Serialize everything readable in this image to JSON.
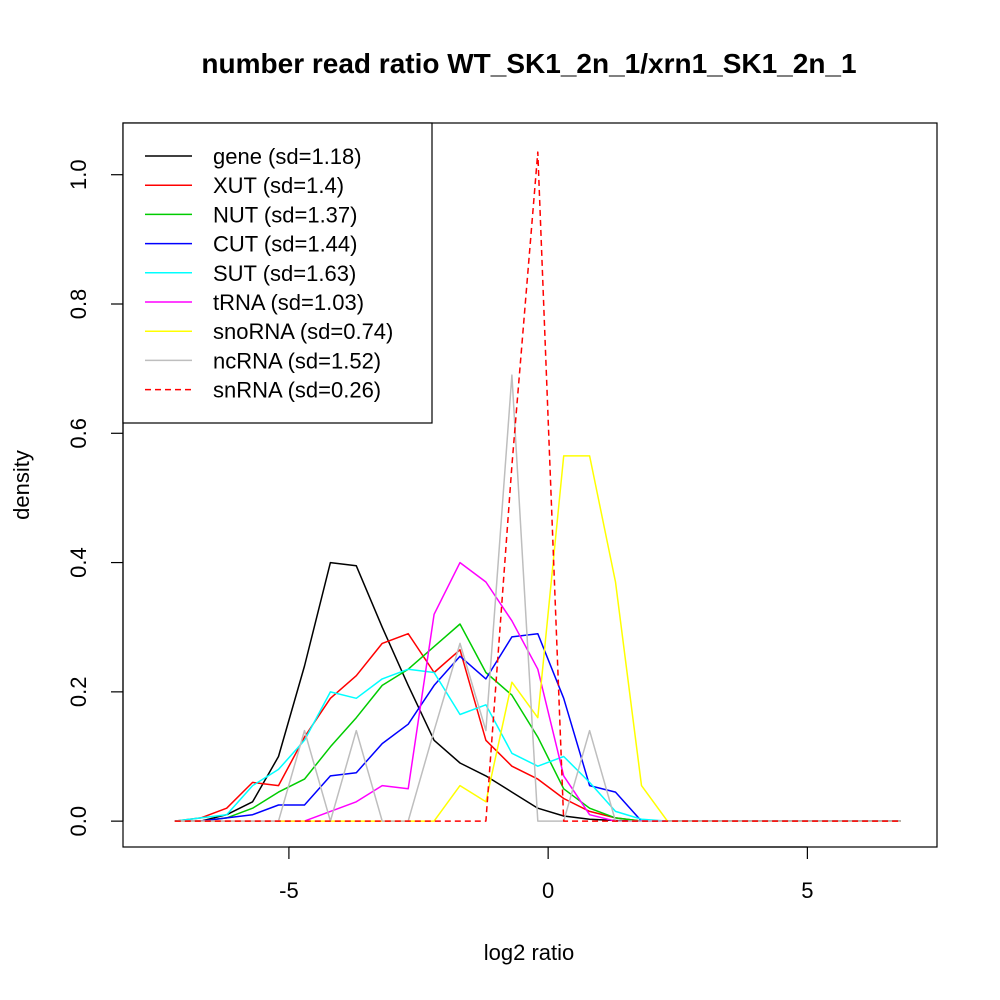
{
  "chart_data": {
    "type": "line",
    "title": "number read ratio WT_SK1_2n_1/xrn1_SK1_2n_1",
    "xlabel": "log2 ratio",
    "ylabel": "density",
    "xlim": [
      -8.2,
      7.5
    ],
    "ylim": [
      -0.04,
      1.08
    ],
    "x_ticks": [
      -5,
      0,
      5
    ],
    "x_tick_labels": [
      "-5",
      "0",
      "5"
    ],
    "y_ticks": [
      0.0,
      0.2,
      0.4,
      0.6,
      0.8,
      1.0
    ],
    "y_tick_labels": [
      "0.0",
      "0.2",
      "0.4",
      "0.6",
      "0.8",
      "1.0"
    ],
    "grid": false,
    "legend_position": "top-left",
    "x": [
      -7.2,
      -6.7,
      -6.2,
      -5.7,
      -5.2,
      -4.7,
      -4.2,
      -3.7,
      -3.2,
      -2.7,
      -2.2,
      -1.7,
      -1.2,
      -0.7,
      -0.2,
      0.3,
      0.8,
      1.3,
      1.8,
      2.3,
      2.8,
      3.3,
      3.8,
      4.3,
      4.8,
      5.3,
      5.8,
      6.3,
      6.8
    ],
    "series": [
      {
        "name": "gene (sd=1.18)",
        "color": "#000000",
        "dash": false,
        "values": [
          0,
          0,
          0.01,
          0.03,
          0.1,
          0.24,
          0.4,
          0.395,
          0.3,
          0.21,
          0.125,
          0.09,
          0.07,
          0.045,
          0.02,
          0.008,
          0.003,
          0.001,
          0,
          0,
          0,
          0,
          0,
          0,
          0,
          0,
          0,
          0,
          0
        ]
      },
      {
        "name": "XUT (sd=1.4)",
        "color": "#ff0000",
        "dash": false,
        "values": [
          0,
          0.005,
          0.02,
          0.06,
          0.055,
          0.13,
          0.19,
          0.225,
          0.275,
          0.29,
          0.23,
          0.265,
          0.125,
          0.085,
          0.065,
          0.035,
          0.015,
          0.005,
          0,
          0,
          0,
          0,
          0,
          0,
          0,
          0,
          0,
          0,
          0
        ]
      },
      {
        "name": "NUT (sd=1.37)",
        "color": "#00cc00",
        "dash": false,
        "values": [
          0,
          0,
          0.005,
          0.02,
          0.045,
          0.065,
          0.115,
          0.16,
          0.21,
          0.235,
          0.27,
          0.305,
          0.23,
          0.195,
          0.13,
          0.05,
          0.02,
          0.005,
          0,
          0,
          0,
          0,
          0,
          0,
          0,
          0,
          0,
          0,
          0
        ]
      },
      {
        "name": "CUT (sd=1.44)",
        "color": "#0000ff",
        "dash": false,
        "values": [
          0,
          0,
          0.005,
          0.01,
          0.025,
          0.025,
          0.07,
          0.075,
          0.12,
          0.15,
          0.21,
          0.255,
          0.22,
          0.285,
          0.29,
          0.19,
          0.055,
          0.045,
          0,
          0,
          0,
          0,
          0,
          0,
          0,
          0,
          0,
          0,
          0
        ]
      },
      {
        "name": "SUT (sd=1.63)",
        "color": "#00ffff",
        "dash": false,
        "values": [
          0,
          0.005,
          0.01,
          0.055,
          0.08,
          0.125,
          0.2,
          0.19,
          0.22,
          0.235,
          0.23,
          0.165,
          0.18,
          0.105,
          0.085,
          0.1,
          0.06,
          0.015,
          0.003,
          0,
          0,
          0,
          0,
          0,
          0,
          0,
          0,
          0,
          0
        ]
      },
      {
        "name": "tRNA (sd=1.03)",
        "color": "#ff00ff",
        "dash": false,
        "values": [
          0,
          0,
          0,
          0,
          0,
          0,
          0.015,
          0.03,
          0.055,
          0.05,
          0.32,
          0.4,
          0.37,
          0.31,
          0.235,
          0.07,
          0.01,
          0,
          0,
          0,
          0,
          0,
          0,
          0,
          0,
          0,
          0,
          0,
          0
        ]
      },
      {
        "name": "snoRNA (sd=0.74)",
        "color": "#ffff00",
        "dash": false,
        "values": [
          0,
          0,
          0,
          0,
          0,
          0,
          0,
          0,
          0,
          0,
          0,
          0.055,
          0.03,
          0.215,
          0.16,
          0.565,
          0.565,
          0.37,
          0.055,
          0,
          0,
          0,
          0,
          0,
          0,
          0,
          0,
          0,
          0
        ]
      },
      {
        "name": "ncRNA (sd=1.52)",
        "color": "#bebebe",
        "dash": false,
        "values": [
          0,
          0,
          0,
          0,
          0,
          0.14,
          0,
          0.14,
          0,
          0,
          0.14,
          0.275,
          0.14,
          0.69,
          0,
          0,
          0.14,
          0,
          0,
          0,
          0,
          0,
          0,
          0,
          0,
          0,
          0,
          0,
          0
        ]
      },
      {
        "name": "snRNA (sd=0.26)",
        "color": "#ff0000",
        "dash": true,
        "values": [
          0,
          0,
          0,
          0,
          0,
          0,
          0,
          0,
          0,
          0,
          0,
          0,
          0,
          0.55,
          1.035,
          0,
          0,
          0,
          0,
          0,
          0,
          0,
          0,
          0,
          0,
          0,
          0,
          0,
          0
        ]
      }
    ]
  }
}
